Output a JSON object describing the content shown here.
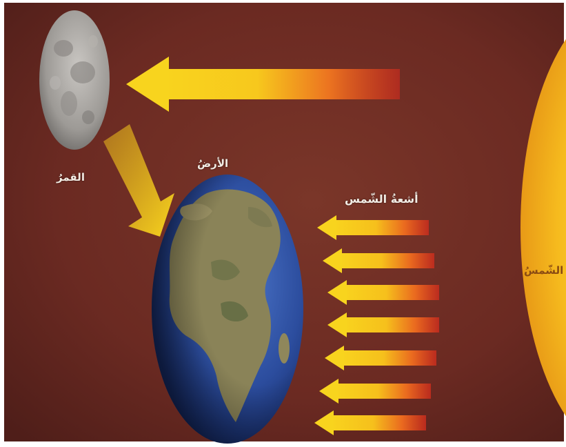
{
  "labels": {
    "moon": "القمرُ",
    "earth": "الأرضُ",
    "sun_rays": "أشعةُ الشّمس",
    "sun": "الشّمسُ"
  },
  "colors": {
    "background": "#6b2a22",
    "sun": "#f5b51c",
    "ray_yellow": "#f8d41e",
    "ray_red": "#d8331f",
    "earth_ocean": "#2a4a9a",
    "earth_land": "#8a8358",
    "moon": "#a7a4a0"
  },
  "icons": {
    "moon": "moon-icon",
    "earth": "earth-globe-icon",
    "sun": "sun-icon",
    "ray": "arrow-left-icon"
  }
}
